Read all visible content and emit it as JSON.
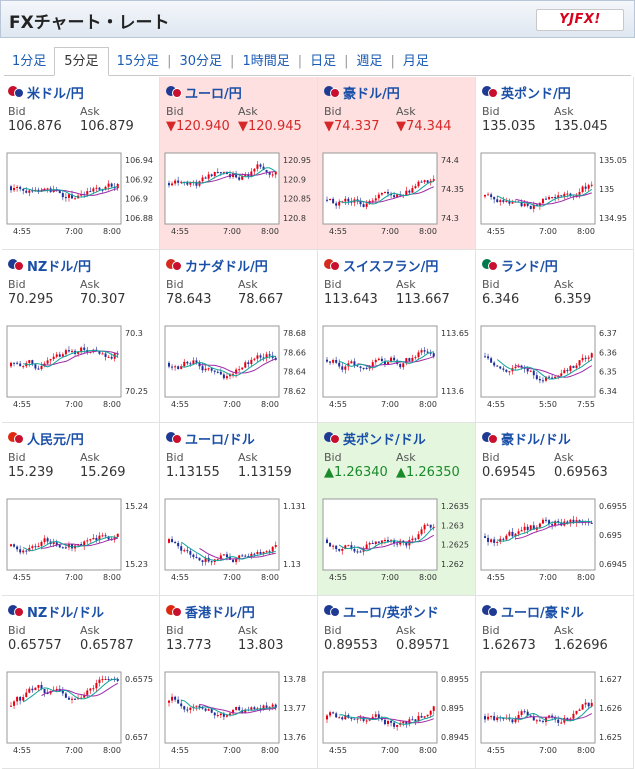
{
  "header": {
    "title": "FXチャート・レート",
    "logo": "YJFX!"
  },
  "tabs": [
    {
      "label": "1分足"
    },
    {
      "label": "5分足",
      "active": true
    },
    {
      "label": "15分足"
    },
    {
      "label": "30分足"
    },
    {
      "label": "1時間足"
    },
    {
      "label": "日足"
    },
    {
      "label": "週足"
    },
    {
      "label": "月足"
    }
  ],
  "labels": {
    "bid": "Bid",
    "ask": "Ask"
  },
  "colors": {
    "up": "#1a8a2a",
    "down": "#d62828",
    "candle_up": "#e60012",
    "candle_down": "#1e2f9c"
  },
  "pairs": [
    {
      "name": "米ドル/円",
      "flags": [
        "#c8102e",
        "#1f3a93"
      ],
      "bid": "106.876",
      "ask": "106.879",
      "state": "none",
      "yticks": [
        "106.94",
        "106.92",
        "106.9",
        "106.88"
      ],
      "xticks": [
        "4:55",
        "7:00",
        "8:00"
      ]
    },
    {
      "name": "ユーロ/円",
      "flags": [
        "#1f3a93",
        "#c8102e"
      ],
      "bid": "▼120.940",
      "ask": "▼120.945",
      "state": "down",
      "yticks": [
        "120.95",
        "120.9",
        "120.85",
        "120.8"
      ],
      "xticks": [
        "4:55",
        "7:00",
        "8:00"
      ]
    },
    {
      "name": "豪ドル/円",
      "flags": [
        "#1f3a93",
        "#c8102e"
      ],
      "bid": "▼74.337",
      "ask": "▼74.344",
      "state": "down",
      "yticks": [
        "74.4",
        "74.35",
        "74.3"
      ],
      "xticks": [
        "4:55",
        "7:00",
        "8:00"
      ]
    },
    {
      "name": "英ポンド/円",
      "flags": [
        "#1f3a93",
        "#c8102e"
      ],
      "bid": "135.035",
      "ask": "135.045",
      "state": "none",
      "yticks": [
        "135.05",
        "135",
        "134.95"
      ],
      "xticks": [
        "4:55",
        "7:00",
        "8:00"
      ]
    },
    {
      "name": "NZドル/円",
      "flags": [
        "#1f3a93",
        "#c8102e"
      ],
      "bid": "70.295",
      "ask": "70.307",
      "state": "none",
      "yticks": [
        "70.3",
        "70.25"
      ],
      "xticks": [
        "4:55",
        "7:00",
        "8:00"
      ]
    },
    {
      "name": "カナダドル/円",
      "flags": [
        "#d52b1e",
        "#c8102e"
      ],
      "bid": "78.643",
      "ask": "78.667",
      "state": "none",
      "yticks": [
        "78.68",
        "78.66",
        "78.64",
        "78.62"
      ],
      "xticks": [
        "4:55",
        "7:00",
        "8:00"
      ]
    },
    {
      "name": "スイスフラン/円",
      "flags": [
        "#d52b1e",
        "#c8102e"
      ],
      "bid": "113.643",
      "ask": "113.667",
      "state": "none",
      "yticks": [
        "113.65",
        "113.6"
      ],
      "xticks": [
        "4:55",
        "7:00",
        "8:00"
      ]
    },
    {
      "name": "ランド/円",
      "flags": [
        "#007a4d",
        "#c8102e"
      ],
      "bid": "6.346",
      "ask": "6.359",
      "state": "none",
      "yticks": [
        "6.37",
        "6.36",
        "6.35",
        "6.34"
      ],
      "xticks": [
        "4:55",
        "5:50",
        "7:55"
      ]
    },
    {
      "name": "人民元/円",
      "flags": [
        "#de2910",
        "#c8102e"
      ],
      "bid": "15.239",
      "ask": "15.269",
      "state": "none",
      "yticks": [
        "15.24",
        "15.23"
      ],
      "xticks": [
        "4:55",
        "7:00",
        "8:00"
      ]
    },
    {
      "name": "ユーロ/ドル",
      "flags": [
        "#1f3a93",
        "#c8102e"
      ],
      "bid": "1.13155",
      "ask": "1.13159",
      "state": "none",
      "yticks": [
        "1.131",
        "1.13"
      ],
      "xticks": [
        "4:55",
        "7:00",
        "8:00"
      ]
    },
    {
      "name": "英ポンド/ドル",
      "flags": [
        "#1f3a93",
        "#c8102e"
      ],
      "bid": "▲1.26340",
      "ask": "▲1.26350",
      "state": "up",
      "yticks": [
        "1.2635",
        "1.263",
        "1.2625",
        "1.262"
      ],
      "xticks": [
        "4:55",
        "7:00",
        "8:00"
      ]
    },
    {
      "name": "豪ドル/ドル",
      "flags": [
        "#1f3a93",
        "#c8102e"
      ],
      "bid": "0.69545",
      "ask": "0.69563",
      "state": "none",
      "yticks": [
        "0.6955",
        "0.695",
        "0.6945"
      ],
      "xticks": [
        "4:55",
        "7:00",
        "8:00"
      ]
    },
    {
      "name": "NZドル/ドル",
      "flags": [
        "#1f3a93",
        "#c8102e"
      ],
      "bid": "0.65757",
      "ask": "0.65787",
      "state": "none",
      "yticks": [
        "0.6575",
        "0.657"
      ],
      "xticks": [
        "4:55",
        "7:00",
        "8:00"
      ]
    },
    {
      "name": "香港ドル/円",
      "flags": [
        "#de2910",
        "#c8102e"
      ],
      "bid": "13.773",
      "ask": "13.803",
      "state": "none",
      "yticks": [
        "13.78",
        "13.77",
        "13.76"
      ],
      "xticks": [
        "4:55",
        "7:00",
        "8:00"
      ]
    },
    {
      "name": "ユーロ/英ポンド",
      "flags": [
        "#1f3a93",
        "#1f3a93"
      ],
      "bid": "0.89553",
      "ask": "0.89571",
      "state": "none",
      "yticks": [
        "0.8955",
        "0.895",
        "0.8945"
      ],
      "xticks": [
        "4:55",
        "7:00",
        "8:00"
      ]
    },
    {
      "name": "ユーロ/豪ドル",
      "flags": [
        "#1f3a93",
        "#1f3a93"
      ],
      "bid": "1.62673",
      "ask": "1.62696",
      "state": "none",
      "yticks": [
        "1.627",
        "1.626",
        "1.625"
      ],
      "xticks": [
        "4:55",
        "7:00",
        "8:00"
      ]
    }
  ]
}
